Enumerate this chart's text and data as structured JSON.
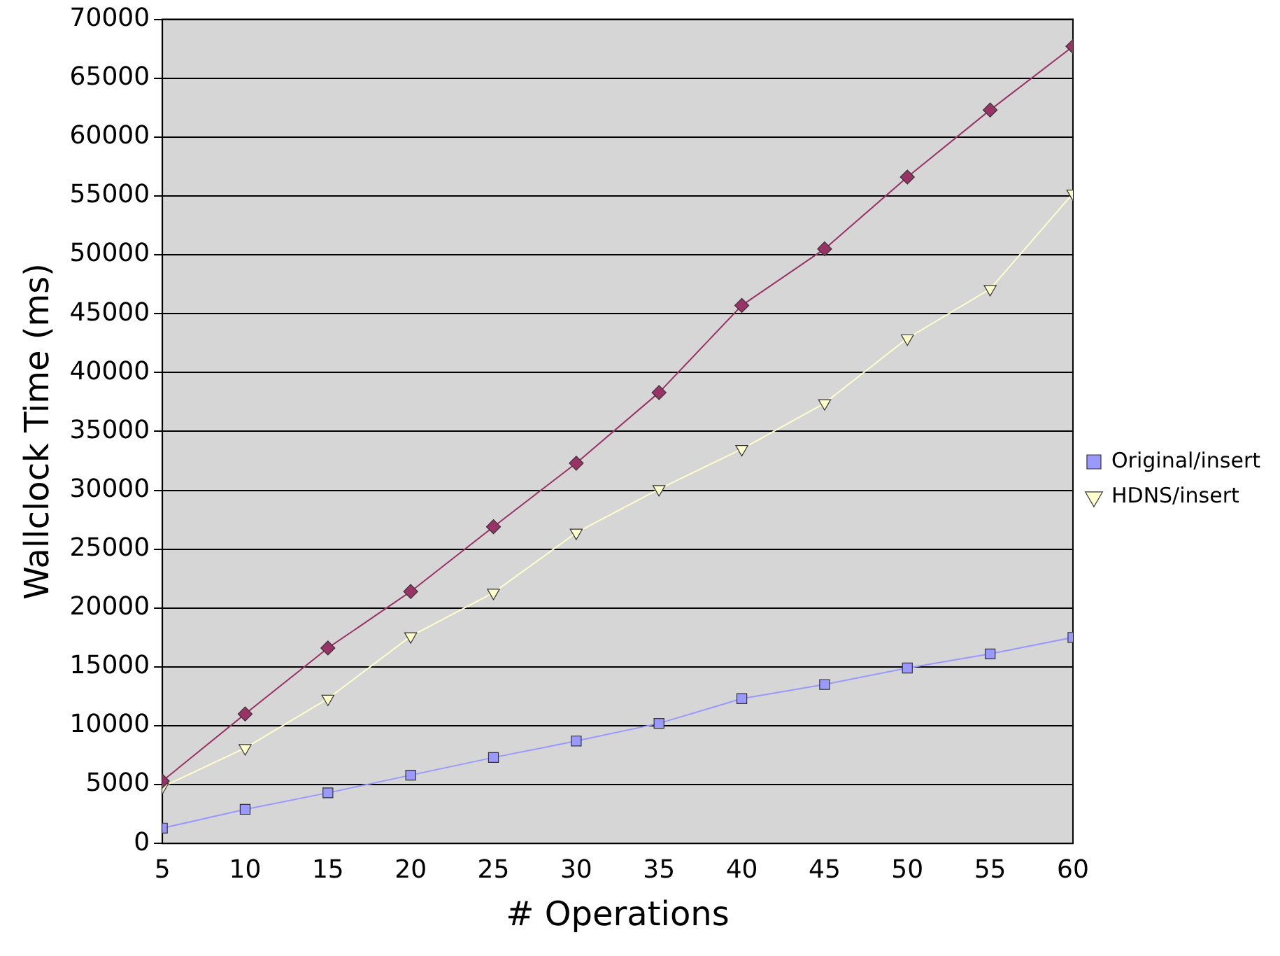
{
  "chart_data": {
    "type": "line",
    "xlabel": "# Operations",
    "ylabel": "Wallclock Time (ms)",
    "x": [
      5,
      10,
      15,
      20,
      25,
      30,
      35,
      40,
      45,
      50,
      55,
      60
    ],
    "xlim": [
      5,
      60
    ],
    "xticks": [
      5,
      10,
      15,
      20,
      25,
      30,
      35,
      40,
      45,
      50,
      55,
      60
    ],
    "ylim": [
      0,
      70000
    ],
    "yticks": [
      0,
      5000,
      10000,
      15000,
      20000,
      25000,
      30000,
      35000,
      40000,
      45000,
      50000,
      55000,
      60000,
      65000,
      70000
    ],
    "grid": "y",
    "legend": "right",
    "series": [
      {
        "name": "Original/insert",
        "color": "#9999ff",
        "marker": "square",
        "values": [
          1300,
          2900,
          4300,
          5800,
          7300,
          8700,
          10200,
          12300,
          13500,
          14900,
          16100,
          17500
        ]
      },
      {
        "color": "#993366",
        "marker": "diamond",
        "values": [
          5300,
          11000,
          16600,
          21400,
          26900,
          32300,
          38300,
          45700,
          50500,
          56600,
          62300,
          67700
        ]
      },
      {
        "name": "HDNS/insert",
        "color": "#ffffcc",
        "marker": "triangle",
        "values": [
          4800,
          8100,
          12300,
          17600,
          21300,
          26400,
          30100,
          33500,
          37400,
          42900,
          47100,
          55200
        ]
      }
    ]
  }
}
